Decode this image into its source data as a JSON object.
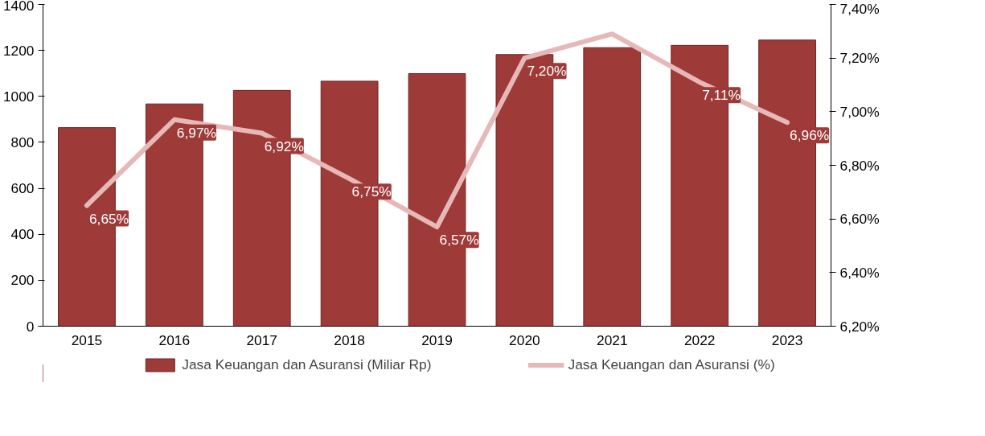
{
  "chart_data": {
    "type": "bar",
    "categories": [
      "2015",
      "2016",
      "2017",
      "2018",
      "2019",
      "2020",
      "2021",
      "2022",
      "2023"
    ],
    "series": [
      {
        "name": "Jasa Keuangan dan Asuransi (Miliar Rp)",
        "color": "#9e3a38",
        "values": [
          864,
          967,
          1026,
          1066,
          1099,
          1182,
          1212,
          1222,
          1245
        ]
      },
      {
        "name": "Jasa Keuangan dan Asuransi (%)",
        "type": "line",
        "axis": "y2",
        "color": "#e6b8b7",
        "values": [
          6.65,
          6.97,
          6.92,
          6.75,
          6.57,
          7.2,
          7.29,
          7.11,
          6.96
        ],
        "value_labels": [
          "6,65%",
          "6,97%",
          "6,92%",
          "6,75%",
          "6,57%",
          "7,20%",
          null,
          "7,11%",
          "6,96%"
        ]
      }
    ],
    "ylim": [
      0,
      1400
    ],
    "yticks": [
      0,
      200,
      400,
      600,
      800,
      1000,
      1200,
      1400
    ],
    "y2lim": [
      6.2,
      7.4
    ],
    "y2ticks": [
      {
        "value": 6.2,
        "label": "6,20%"
      },
      {
        "value": 6.4,
        "label": "6,40%"
      },
      {
        "value": 6.6,
        "label": "6,60%"
      },
      {
        "value": 6.8,
        "label": "6,80%"
      },
      {
        "value": 7.0,
        "label": "7,00%"
      },
      {
        "value": 7.2,
        "label": "7,20%"
      },
      {
        "value": 7.4,
        "label": "7,40%"
      }
    ],
    "grid": false,
    "legend": "bottom",
    "marker": "none",
    "line_style": "solid"
  }
}
